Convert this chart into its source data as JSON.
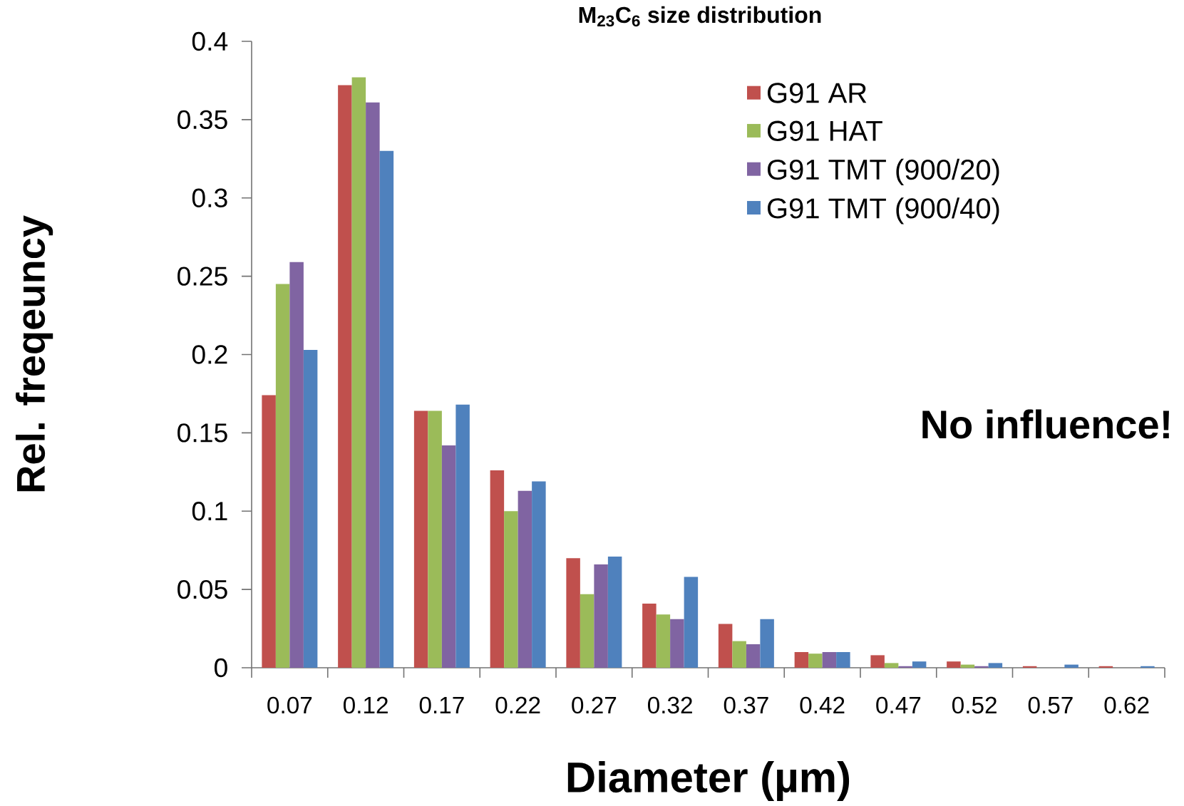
{
  "chart_data": {
    "type": "bar",
    "title": "M$_{23}$C$_{6}$ size distribution",
    "xlabel": "Diameter (µm)",
    "ylabel": "Rel. freqeuncy",
    "categories": [
      "0.07",
      "0.12",
      "0.17",
      "0.22",
      "0.27",
      "0.32",
      "0.37",
      "0.42",
      "0.47",
      "0.52",
      "0.57",
      "0.62"
    ],
    "series": [
      {
        "name": "G91 AR",
        "color": "#c0504d",
        "values": [
          0.174,
          0.372,
          0.164,
          0.126,
          0.07,
          0.041,
          0.028,
          0.01,
          0.008,
          0.004,
          0.001,
          0.001
        ]
      },
      {
        "name": "G91 HAT",
        "color": "#9bbb59",
        "values": [
          0.245,
          0.377,
          0.164,
          0.1,
          0.047,
          0.034,
          0.017,
          0.009,
          0.003,
          0.002,
          0.0,
          0.0
        ]
      },
      {
        "name": "G91 TMT (900/20)",
        "color": "#8064a2",
        "values": [
          0.259,
          0.361,
          0.142,
          0.113,
          0.066,
          0.031,
          0.015,
          0.01,
          0.001,
          0.001,
          0.0,
          0.0
        ]
      },
      {
        "name": "G91 TMT (900/40)",
        "color": "#4f81bd",
        "values": [
          0.203,
          0.33,
          0.168,
          0.119,
          0.071,
          0.058,
          0.031,
          0.01,
          0.004,
          0.003,
          0.002,
          0.001
        ]
      }
    ],
    "ylim": [
      0,
      0.4
    ],
    "yticks": [
      0,
      0.05,
      0.1,
      0.15,
      0.2,
      0.25,
      0.3,
      0.35,
      0.4
    ],
    "grid": false,
    "legend": "top right",
    "annotations": [
      "No influence!"
    ]
  }
}
